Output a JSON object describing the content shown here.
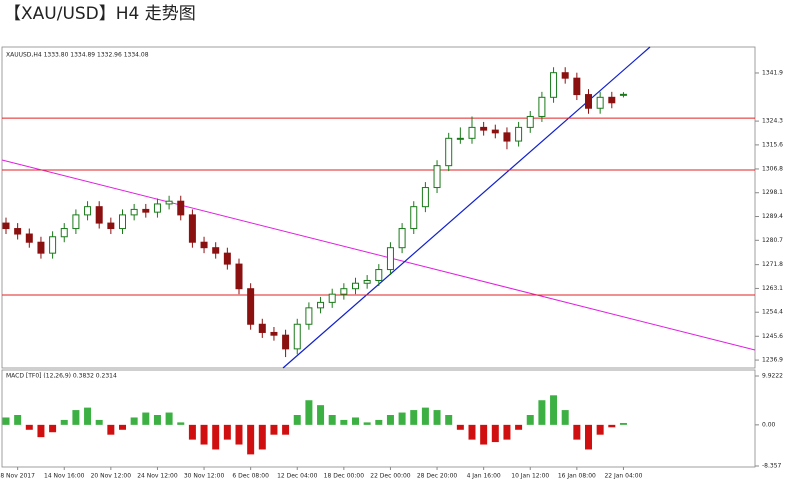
{
  "chart_data": [
    {
      "type": "candlestick",
      "title": "【XAU/USD】H4 走势图",
      "header": "XAUUSD,H4  1333.80 1334.89 1332.96 1334.08",
      "categories": [
        null,
        "8 Nov 2017",
        null,
        null,
        null,
        "14 Nov 16:00",
        null,
        null,
        null,
        "20 Nov 12:00",
        null,
        null,
        null,
        "24 Nov 12:00",
        null,
        null,
        null,
        "30 Nov 12:00",
        null,
        null,
        null,
        "6 Dec 08:00",
        null,
        null,
        null,
        "12 Dec 04:00",
        null,
        null,
        null,
        "18 Dec 00:00",
        null,
        null,
        null,
        "22 Dec 00:00",
        null,
        null,
        null,
        "28 Dec 20:00",
        null,
        null,
        null,
        "4 Jan 16:00",
        null,
        null,
        null,
        "10 Jan 12:00",
        null,
        null,
        null,
        "16 Jan 08:00",
        null,
        null,
        null,
        "22 Jan 04:00"
      ],
      "open": [
        1287,
        1285,
        1283,
        1280,
        1276,
        1282,
        1285,
        1290,
        1293,
        1287,
        1285,
        1290,
        1292,
        1291,
        1294,
        1295,
        1290,
        1280,
        1278,
        1276,
        1272,
        1263,
        1250,
        1247,
        1246,
        1241,
        1250,
        1256,
        1258,
        1261,
        1263,
        1265,
        1266,
        1270,
        1278,
        1285,
        1293,
        1300,
        1308,
        1318,
        1318,
        1322,
        1321,
        1320,
        1317,
        1322,
        1326,
        1333,
        1342,
        1340,
        1334,
        1329,
        1333,
        1333.8
      ],
      "high": [
        1289,
        1287,
        1285,
        1282,
        1284,
        1287,
        1292,
        1295,
        1295,
        1289,
        1292,
        1294,
        1294,
        1296,
        1297,
        1297,
        1292,
        1282,
        1280,
        1278,
        1274,
        1265,
        1252,
        1249,
        1248,
        1252,
        1258,
        1260,
        1263,
        1265,
        1267,
        1268,
        1272,
        1280,
        1287,
        1295,
        1302,
        1310,
        1320,
        1322,
        1326,
        1324,
        1323,
        1322,
        1324,
        1328,
        1335,
        1344,
        1344,
        1342,
        1336,
        1335,
        1335,
        1334.89
      ],
      "low": [
        1283,
        1281,
        1278,
        1274,
        1274,
        1280,
        1283,
        1288,
        1285,
        1283,
        1283,
        1288,
        1289,
        1289,
        1292,
        1288,
        1278,
        1276,
        1274,
        1270,
        1261,
        1248,
        1245,
        1244,
        1238,
        1239,
        1248,
        1254,
        1256,
        1259,
        1261,
        1263,
        1264,
        1268,
        1276,
        1283,
        1291,
        1298,
        1306,
        1316,
        1316,
        1319,
        1318,
        1314,
        1315,
        1320,
        1324,
        1331,
        1338,
        1332,
        1327,
        1327,
        1329,
        1332.96
      ],
      "close": [
        1285,
        1283,
        1280,
        1276,
        1282,
        1285,
        1290,
        1293,
        1287,
        1285,
        1290,
        1292,
        1291,
        1294,
        1295,
        1290,
        1280,
        1278,
        1276,
        1272,
        1263,
        1250,
        1247,
        1246,
        1241,
        1250,
        1256,
        1258,
        1261,
        1263,
        1265,
        1266,
        1270,
        1278,
        1285,
        1293,
        1300,
        1308,
        1318,
        1318,
        1322,
        1321,
        1320,
        1317,
        1322,
        1326,
        1333,
        1342,
        1340,
        1334,
        1329,
        1333,
        1331,
        1334.08
      ],
      "up_color": "#1a7a1a",
      "down_color": "#8b1010",
      "levels": [
        1325.4,
        1306.4,
        1260.7
      ],
      "level_color": "#e02020",
      "ylim": [
        1234.0,
        1351.4
      ],
      "yticks": [
        1341.9,
        1324.3,
        1315.6,
        1306.8,
        1298.1,
        1289.4,
        1280.7,
        1271.8,
        1263.1,
        1254.4,
        1245.6,
        1236.9
      ]
    },
    {
      "type": "bar",
      "header": "MACD [TF0] (12,26,9) 0.3832 0.2314",
      "values": [
        1.5,
        2,
        -1,
        -2.5,
        -1.5,
        1,
        3,
        3.5,
        1,
        -2,
        -1,
        1.5,
        2.5,
        2,
        2.5,
        0.5,
        -3,
        -4,
        -5,
        -3,
        -4,
        -6,
        -5,
        -2,
        -2,
        2,
        5,
        4,
        2,
        1,
        1.5,
        0.5,
        1,
        2,
        2.5,
        3,
        3.5,
        3,
        2,
        -1,
        -3,
        -4,
        -3.5,
        -3,
        -1,
        2,
        5,
        6,
        3,
        -3,
        -5,
        -2,
        -0.5,
        0.38
      ],
      "up_color": "#3cb043",
      "down_color": "#d01010",
      "ylim": [
        -8.56,
        11.14
      ],
      "yticks": [
        9.9222,
        {
          "value": 0,
          "label": "0.00"
        },
        -8.357
      ]
    }
  ]
}
